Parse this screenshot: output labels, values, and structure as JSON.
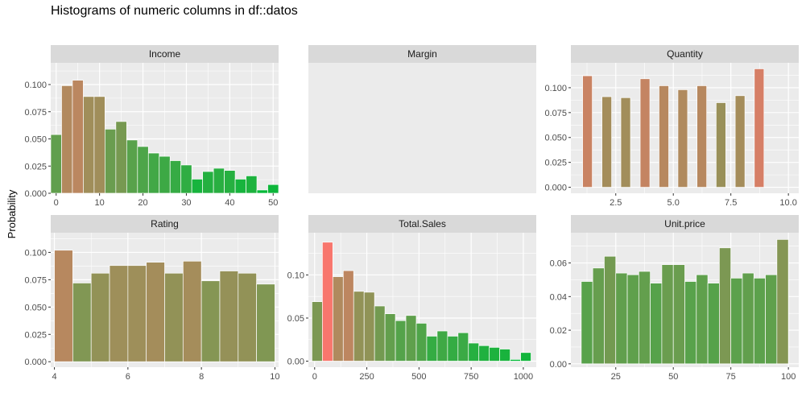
{
  "title": "Histograms of numeric columns in df::datos",
  "y_axis_label": "Probability",
  "colors": {
    "low": "#f8766d",
    "high": "#00ba38",
    "panel_bg": "#ebebeb",
    "strip_bg": "#d9d9d9",
    "grid": "#ffffff"
  },
  "chart_data": [
    {
      "type": "bar",
      "facet": "Income",
      "bin_centers": [
        0,
        2.5,
        5,
        7.5,
        10,
        12.5,
        15,
        17.5,
        20,
        22.5,
        25,
        27.5,
        30,
        32.5,
        35,
        37.5,
        40,
        42.5,
        45,
        47.5,
        50
      ],
      "values": [
        0.054,
        0.099,
        0.104,
        0.089,
        0.089,
        0.059,
        0.066,
        0.049,
        0.043,
        0.037,
        0.034,
        0.03,
        0.026,
        0.013,
        0.02,
        0.023,
        0.021,
        0.013,
        0.016,
        0.003,
        0.008
      ],
      "xlim": [
        -1.25,
        51.25
      ],
      "ylim": [
        0,
        0.12
      ],
      "x_ticks": [
        0,
        10,
        20,
        30,
        40,
        50
      ],
      "y_ticks": [
        0.0,
        0.025,
        0.05,
        0.075,
        0.1
      ],
      "x_tick_labels": [
        "0",
        "10",
        "20",
        "30",
        "40",
        "50"
      ],
      "y_tick_labels": [
        "0.000",
        "0.025",
        "0.050",
        "0.075",
        "0.100"
      ]
    },
    {
      "type": "bar",
      "facet": "Margin",
      "bin_centers": [],
      "values": [],
      "xlim": [
        0,
        1
      ],
      "ylim": [
        0,
        0.12
      ],
      "x_ticks": [],
      "y_ticks": [],
      "x_tick_labels": [],
      "y_tick_labels": []
    },
    {
      "type": "bar",
      "facet": "Quantity",
      "bin_centers": [
        1.27,
        2.11,
        2.93,
        3.77,
        4.59,
        5.41,
        6.24,
        7.07,
        7.9,
        8.73
      ],
      "values": [
        0.112,
        0.091,
        0.09,
        0.109,
        0.102,
        0.098,
        0.102,
        0.085,
        0.092,
        0.119
      ],
      "bar_width": 0.42,
      "xlim": [
        0.55,
        10.45
      ],
      "ylim": [
        -0.006,
        0.125
      ],
      "x_ticks": [
        2.5,
        5.0,
        7.5,
        10.0
      ],
      "y_ticks": [
        0.0,
        0.025,
        0.05,
        0.075,
        0.1
      ],
      "x_tick_labels": [
        "2.5",
        "5.0",
        "7.5",
        "10.0"
      ],
      "y_tick_labels": [
        "0.000",
        "0.025",
        "0.050",
        "0.075",
        "0.100"
      ]
    },
    {
      "type": "bar",
      "facet": "Rating",
      "bin_centers": [
        4.25,
        4.75,
        5.25,
        5.75,
        6.25,
        6.75,
        7.25,
        7.75,
        8.25,
        8.75,
        9.25,
        9.75
      ],
      "values": [
        0.102,
        0.072,
        0.081,
        0.088,
        0.088,
        0.091,
        0.081,
        0.092,
        0.074,
        0.083,
        0.081,
        0.071
      ],
      "xlim": [
        3.9,
        10.1
      ],
      "ylim": [
        -0.005,
        0.118
      ],
      "x_ticks": [
        4,
        6,
        8,
        10
      ],
      "y_ticks": [
        0.0,
        0.025,
        0.05,
        0.075,
        0.1
      ],
      "x_tick_labels": [
        "4",
        "6",
        "8",
        "10"
      ],
      "y_tick_labels": [
        "0.000",
        "0.025",
        "0.050",
        "0.075",
        "0.100"
      ]
    },
    {
      "type": "bar",
      "facet": "Total.Sales",
      "bin_centers": [
        12,
        62,
        112,
        162,
        212,
        262,
        312,
        362,
        412,
        462,
        512,
        562,
        612,
        662,
        712,
        762,
        812,
        862,
        912,
        962,
        1012
      ],
      "values": [
        0.069,
        0.138,
        0.098,
        0.105,
        0.081,
        0.08,
        0.064,
        0.055,
        0.047,
        0.053,
        0.044,
        0.029,
        0.035,
        0.029,
        0.033,
        0.021,
        0.018,
        0.016,
        0.014,
        0.002,
        0.01
      ],
      "xlim": [
        -30,
        1062
      ],
      "ylim": [
        -0.007,
        0.149
      ],
      "x_ticks": [
        0,
        250,
        500,
        750,
        1000
      ],
      "y_ticks": [
        0.0,
        0.05,
        0.1
      ],
      "x_tick_labels": [
        "0",
        "250",
        "500",
        "750",
        "1000"
      ],
      "y_tick_labels": [
        "0.00",
        "0.05",
        "0.10"
      ]
    },
    {
      "type": "bar",
      "facet": "Unit.price",
      "bin_centers": [
        12.5,
        17.5,
        22.5,
        27.5,
        32.5,
        37.5,
        42.5,
        47.5,
        52.5,
        57.5,
        62.5,
        67.5,
        72.5,
        77.5,
        82.5,
        87.5,
        92.5,
        97.5
      ],
      "values": [
        0.049,
        0.057,
        0.064,
        0.054,
        0.053,
        0.055,
        0.048,
        0.059,
        0.059,
        0.049,
        0.053,
        0.048,
        0.069,
        0.051,
        0.054,
        0.051,
        0.053,
        0.074
      ],
      "xlim": [
        5.5,
        104.5
      ],
      "ylim": [
        -0.002,
        0.078
      ],
      "x_ticks": [
        25,
        50,
        75,
        100
      ],
      "y_ticks": [
        0.0,
        0.02,
        0.04,
        0.06
      ],
      "x_tick_labels": [
        "25",
        "50",
        "75",
        "100"
      ],
      "y_tick_labels": [
        "0.00",
        "0.02",
        "0.04",
        "0.06"
      ]
    }
  ]
}
